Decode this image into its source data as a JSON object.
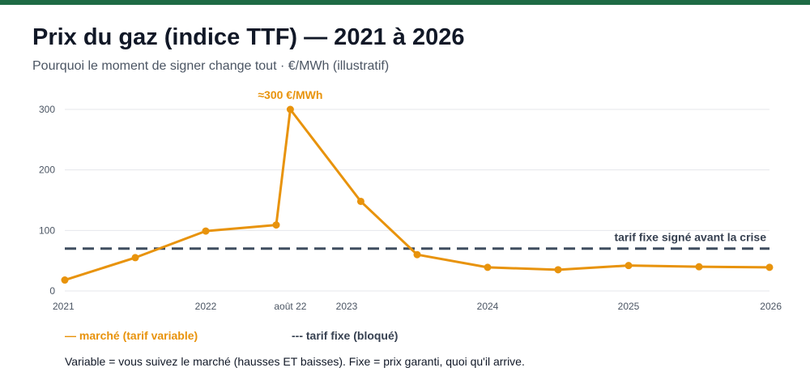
{
  "header": {
    "title": "Prix du gaz (indice TTF) — 2021 à 2026",
    "subtitle": "Pourquoi le moment de signer change tout · €/MWh (illustratif)"
  },
  "legend": {
    "variable": "— marché (tarif variable)",
    "fixed": "--- tarif fixe (bloqué)"
  },
  "footnote": "Variable = vous suivez le marché (hausses ET baisses). Fixe = prix garanti, quoi qu'il arrive.",
  "colors": {
    "market": "#e8930c",
    "fixed": "#3f4d5f",
    "grid": "#e5e7eb",
    "brand_bar": "#1e6b45"
  },
  "chart_data": {
    "type": "line",
    "title": "Prix du gaz (indice TTF) — 2021 à 2026",
    "subtitle": "Pourquoi le moment de signer change tout · €/MWh (illustratif)",
    "xlim": [
      2021,
      2026
    ],
    "ylim": [
      0,
      300
    ],
    "y_ticks": [
      0,
      100,
      200,
      300
    ],
    "x_ticks": [
      {
        "x": 2021,
        "label": "2021"
      },
      {
        "x": 2022,
        "label": "2022"
      },
      {
        "x": 2022.6,
        "label": "août 22"
      },
      {
        "x": 2023,
        "label": "2023"
      },
      {
        "x": 2024,
        "label": "2024"
      },
      {
        "x": 2025,
        "label": "2025"
      },
      {
        "x": 2026,
        "label": "2026"
      }
    ],
    "grid": true,
    "series": [
      {
        "name": "marché (tarif variable)",
        "color": "#e8930c",
        "style": "solid",
        "x": [
          2021,
          2021.5,
          2022,
          2022.5,
          2022.6,
          2023.1,
          2023.5,
          2024,
          2024.5,
          2025,
          2025.5,
          2026
        ],
        "y": [
          18,
          55,
          99,
          109,
          300,
          148,
          60,
          39,
          35,
          42,
          40,
          39
        ]
      },
      {
        "name": "tarif fixe (bloqué)",
        "color": "#3f4d5f",
        "style": "dashed",
        "x": [
          2021,
          2026
        ],
        "y": [
          70,
          70
        ]
      }
    ],
    "annotations": [
      {
        "text": "≈300 €/MWh",
        "x": 2022.6,
        "y": 300,
        "series": 0
      },
      {
        "text": "tarif fixe signé avant la crise",
        "x": 2026,
        "y": 70,
        "series": 1
      }
    ],
    "legend_position": "bottom"
  }
}
